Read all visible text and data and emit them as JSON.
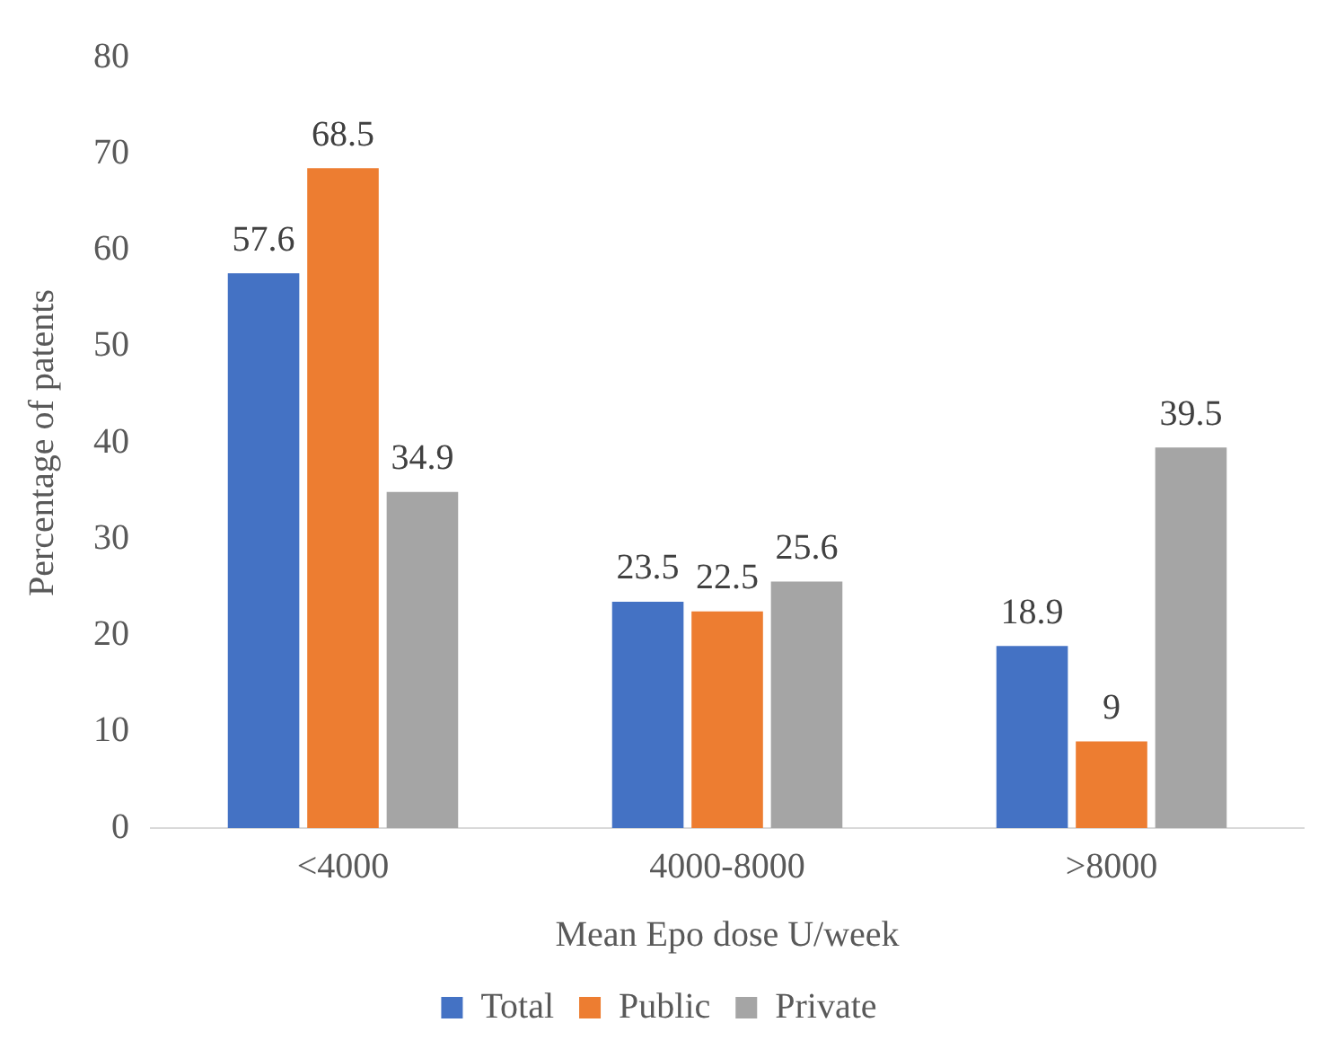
{
  "chart_data": {
    "type": "bar",
    "xlabel": "Mean Epo dose U/week",
    "ylabel": "Percentage of patents",
    "categories": [
      "<4000",
      "4000-8000",
      ">8000"
    ],
    "series": [
      {
        "name": "Total",
        "color": "#4472c4",
        "values": [
          57.6,
          23.5,
          18.9
        ]
      },
      {
        "name": "Public",
        "color": "#ed7d31",
        "values": [
          68.5,
          22.5,
          9
        ]
      },
      {
        "name": "Private",
        "color": "#a5a5a5",
        "values": [
          34.9,
          25.6,
          39.5
        ]
      }
    ],
    "ylim": [
      0,
      80
    ],
    "yticks": [
      0,
      10,
      20,
      30,
      40,
      50,
      60,
      70,
      80
    ],
    "grid": false,
    "legend": "bottom",
    "data_labels": true
  }
}
